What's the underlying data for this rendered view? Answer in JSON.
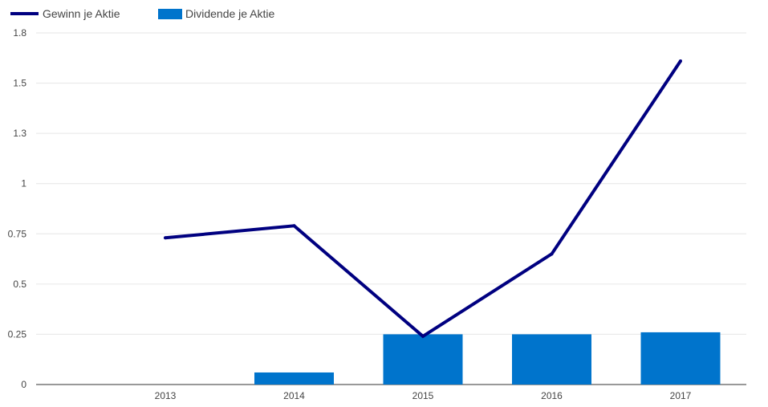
{
  "chart_data": {
    "type": "bar+line",
    "categories": [
      "2013",
      "2014",
      "2015",
      "2016",
      "2017"
    ],
    "series": [
      {
        "name": "Gewinn je Aktie",
        "kind": "line",
        "color": "#000080",
        "values": [
          0.73,
          0.79,
          0.24,
          0.65,
          1.61
        ]
      },
      {
        "name": "Dividende je Aktie",
        "kind": "bar",
        "color": "#0074CC",
        "values": [
          0,
          0.06,
          0.25,
          0.25,
          0.26
        ]
      }
    ],
    "ylim": [
      0,
      1.75
    ],
    "yticks": [
      {
        "value": 0,
        "label": "0"
      },
      {
        "value": 0.25,
        "label": "0.25"
      },
      {
        "value": 0.5,
        "label": "0.5"
      },
      {
        "value": 0.75,
        "label": "0.75"
      },
      {
        "value": 1,
        "label": "1"
      },
      {
        "value": 1.25,
        "label": "1.3"
      },
      {
        "value": 1.5,
        "label": "1.5"
      },
      {
        "value": 1.75,
        "label": "1.8"
      }
    ],
    "grid": true,
    "legend_position": "top-left"
  }
}
